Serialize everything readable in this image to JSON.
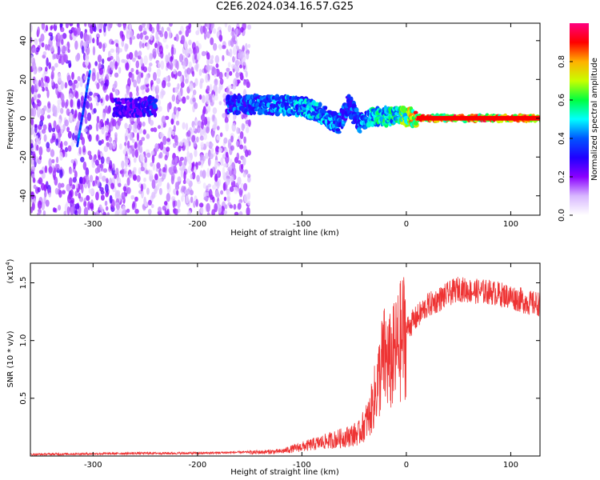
{
  "title": "C2E6.2024.034.16.57.G25",
  "chart_data": [
    {
      "type": "heatmap",
      "xlabel": "Height of straight line (km)",
      "ylabel": "Frequency (Hz)",
      "xlim": [
        -360,
        128
      ],
      "ylim": [
        -50,
        49
      ],
      "x_ticks": [
        -300,
        -200,
        -100,
        0,
        100
      ],
      "y_ticks": [
        -40,
        -20,
        0,
        20,
        40
      ],
      "colorbar": {
        "label": "Normalized spectral amplitude",
        "range": [
          0,
          1
        ],
        "ticks": [
          "0.0",
          "0.2",
          "0.4",
          "0.6",
          "0.8"
        ],
        "colors": [
          "#ffffff",
          "#d8b8ff",
          "#8a00ff",
          "#2000ff",
          "#0055ff",
          "#00ffff",
          "#00ff40",
          "#c8ff00",
          "#ffb000",
          "#ff0000",
          "#ff0080"
        ]
      },
      "ridge": [
        {
          "x": -280,
          "f": 5,
          "amp": 0.3
        },
        {
          "x": -255,
          "f": 6,
          "amp": 0.3
        },
        {
          "x": -245,
          "f": 6,
          "amp": 0.35
        },
        {
          "x": -170,
          "f": 7,
          "amp": 0.4
        },
        {
          "x": -130,
          "f": 7,
          "amp": 0.45
        },
        {
          "x": -100,
          "f": 6,
          "amp": 0.5
        },
        {
          "x": -80,
          "f": 2,
          "amp": 0.5
        },
        {
          "x": -65,
          "f": -3,
          "amp": 0.45
        },
        {
          "x": -55,
          "f": 8,
          "amp": 0.4
        },
        {
          "x": -45,
          "f": -3,
          "amp": 0.45
        },
        {
          "x": -30,
          "f": 1,
          "amp": 0.55
        },
        {
          "x": -10,
          "f": 1,
          "amp": 0.6
        },
        {
          "x": 10,
          "f": 0,
          "amp": 0.85
        },
        {
          "x": 60,
          "f": 0,
          "amp": 0.9
        },
        {
          "x": 128,
          "f": 0,
          "amp": 0.85
        }
      ],
      "streak": {
        "x": [
          -315,
          -303
        ],
        "f": [
          -14,
          24
        ]
      }
    },
    {
      "type": "line",
      "xlabel": "Height of straight line (km)",
      "ylabel": "SNR (10 * v/v)",
      "y_multiplier": "(x10",
      "y_multiplier_exp": "4",
      "xlim": [
        -360,
        128
      ],
      "ylim": [
        0,
        1.67
      ],
      "x_ticks": [
        -300,
        -200,
        -100,
        0,
        100
      ],
      "y_ticks": [
        0.5,
        1.0,
        1.5
      ],
      "color": "#ee3333",
      "envelope": {
        "x": [
          -360,
          -250,
          -200,
          -150,
          -120,
          -100,
          -80,
          -60,
          -45,
          -35,
          -28,
          -22,
          -15,
          -10,
          0,
          10,
          20,
          30,
          40,
          50,
          60,
          80,
          100,
          120,
          128
        ],
        "y": [
          0.01,
          0.02,
          0.02,
          0.03,
          0.04,
          0.08,
          0.12,
          0.16,
          0.2,
          0.35,
          0.6,
          0.85,
          0.8,
          0.9,
          1.1,
          1.2,
          1.3,
          1.35,
          1.4,
          1.45,
          1.43,
          1.42,
          1.38,
          1.32,
          1.32
        ]
      }
    }
  ]
}
